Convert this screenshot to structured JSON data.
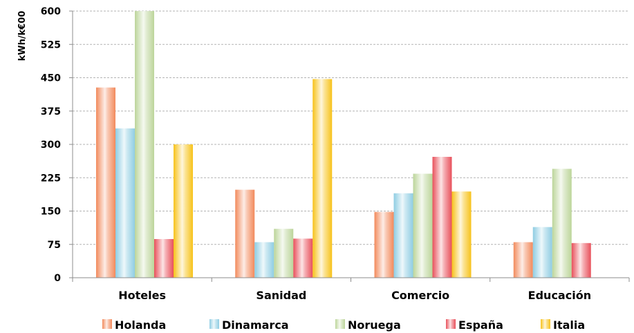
{
  "chart_data": {
    "type": "bar",
    "ylabel": "kWh/k€00",
    "ylim": [
      0,
      600
    ],
    "yticks": [
      0,
      75,
      150,
      225,
      300,
      375,
      450,
      525,
      600
    ],
    "grid": true,
    "legend_position": "bottom",
    "categories": [
      "Hoteles",
      "Sanidad",
      "Comercio",
      "Educación"
    ],
    "series": [
      {
        "name": "Holanda",
        "color": "#F28A5C",
        "values": [
          428,
          198,
          148,
          80
        ]
      },
      {
        "name": "Dinamarca",
        "color": "#8FCDE3",
        "values": [
          336,
          80,
          190,
          114
        ]
      },
      {
        "name": "Noruega",
        "color": "#BCD59A",
        "values": [
          600,
          110,
          234,
          245
        ]
      },
      {
        "name": "España",
        "color": "#E8505B",
        "values": [
          87,
          88,
          272,
          78
        ]
      },
      {
        "name": "Italia",
        "color": "#F7C21A",
        "values": [
          300,
          447,
          194,
          null
        ]
      }
    ]
  }
}
